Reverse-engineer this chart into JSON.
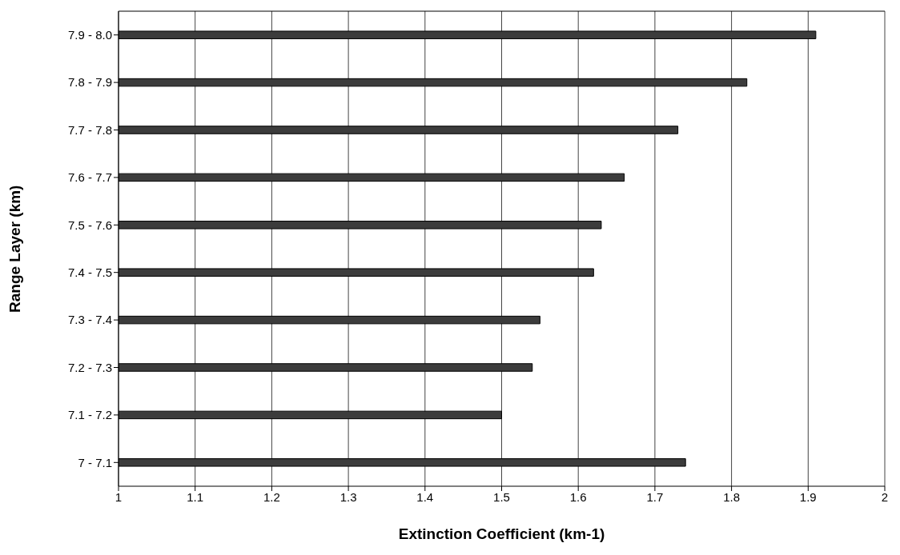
{
  "chart_data": {
    "type": "bar",
    "orientation": "horizontal",
    "xlabel": "Extinction Coefficient (km-1)",
    "ylabel": "Range Layer (km)",
    "categories": [
      "7.9 - 8.0",
      "7.8 - 7.9",
      "7.7 - 7.8",
      "7.6 - 7.7",
      "7.5 - 7.6",
      "7.4 - 7.5",
      "7.3 - 7.4",
      "7.2 - 7.3",
      "7.1 - 7.2",
      "7 - 7.1"
    ],
    "values": [
      1.91,
      1.82,
      1.73,
      1.66,
      1.63,
      1.62,
      1.55,
      1.54,
      1.5,
      1.74
    ],
    "color": "#3c3c3c",
    "xlim": [
      1,
      2
    ],
    "xticks": [
      1,
      1.1,
      1.2,
      1.3,
      1.4,
      1.5,
      1.6,
      1.7,
      1.8,
      1.9,
      2
    ],
    "grid": "x",
    "legend": false
  }
}
